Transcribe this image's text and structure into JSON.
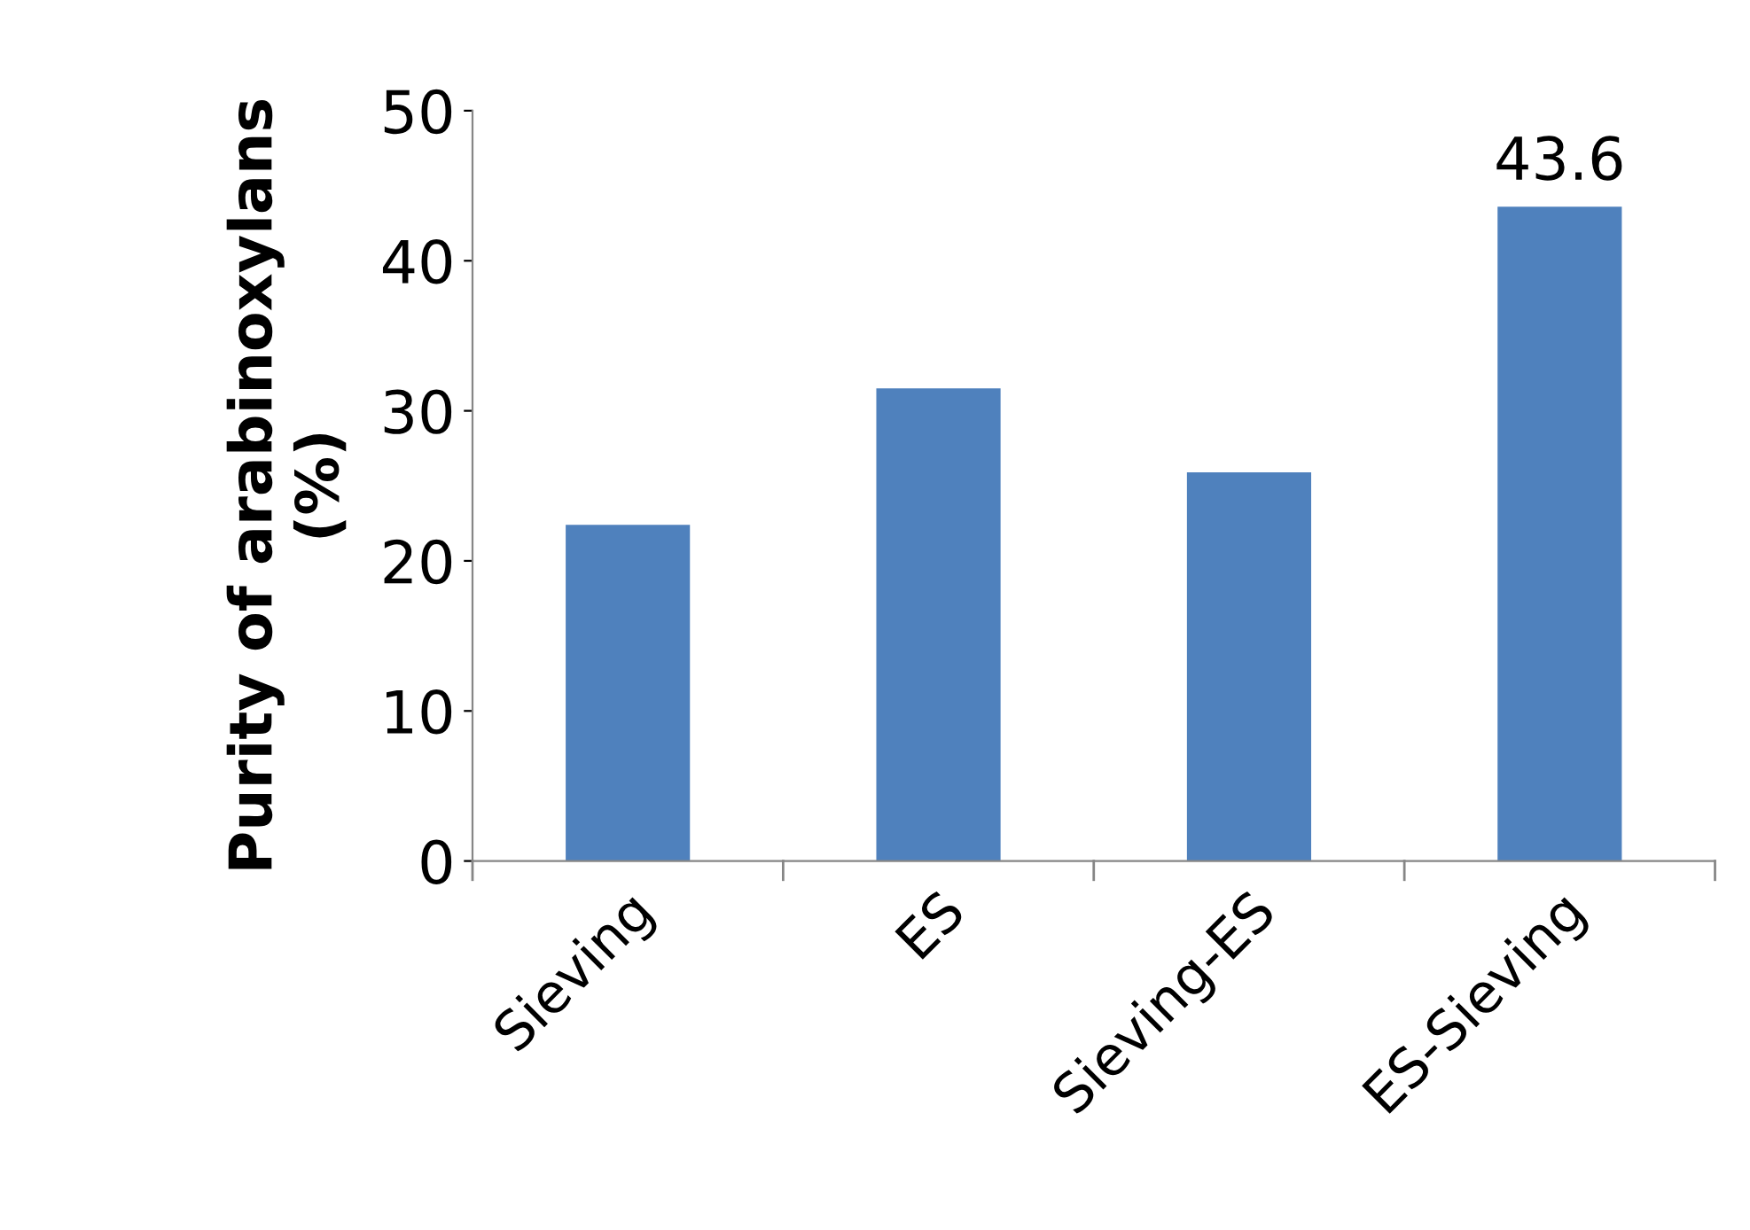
{
  "chart_data": {
    "type": "bar",
    "ylabel": "Purity of arabinoxylans\n(%)",
    "categories": [
      "Sieving",
      "ES",
      "Sieving-ES",
      "ES-Sieving"
    ],
    "values": [
      22.4,
      31.5,
      25.9,
      43.6
    ],
    "value_labels": [
      null,
      null,
      null,
      "43.6"
    ],
    "color": "#4f81bd",
    "ylim": [
      0,
      50
    ],
    "yticks": [
      0,
      10,
      20,
      30,
      40,
      50
    ],
    "grid": false,
    "legend": false
  }
}
